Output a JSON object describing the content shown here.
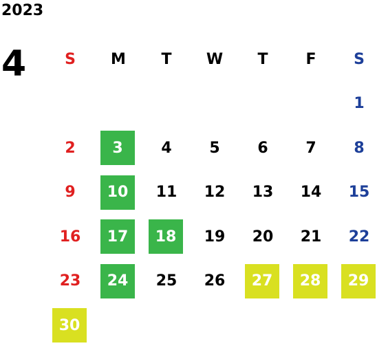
{
  "calendar": {
    "year": "2023",
    "month": "4",
    "weekdays": [
      "S",
      "M",
      "T",
      "W",
      "T",
      "F",
      "S"
    ],
    "colors": {
      "sunday": "#e02020",
      "saturday": "#1d3f99",
      "green_highlight": "#3ab54a",
      "yellow_highlight": "#d9e021"
    },
    "weeks": [
      [
        null,
        null,
        null,
        null,
        null,
        null,
        {
          "day": "1"
        }
      ],
      [
        {
          "day": "2"
        },
        {
          "day": "3",
          "highlight": "green"
        },
        {
          "day": "4"
        },
        {
          "day": "5"
        },
        {
          "day": "6"
        },
        {
          "day": "7"
        },
        {
          "day": "8"
        }
      ],
      [
        {
          "day": "9"
        },
        {
          "day": "10",
          "highlight": "green"
        },
        {
          "day": "11"
        },
        {
          "day": "12"
        },
        {
          "day": "13"
        },
        {
          "day": "14"
        },
        {
          "day": "15"
        }
      ],
      [
        {
          "day": "16"
        },
        {
          "day": "17",
          "highlight": "green"
        },
        {
          "day": "18",
          "highlight": "green"
        },
        {
          "day": "19"
        },
        {
          "day": "20"
        },
        {
          "day": "21"
        },
        {
          "day": "22"
        }
      ],
      [
        {
          "day": "23"
        },
        {
          "day": "24",
          "highlight": "green"
        },
        {
          "day": "25"
        },
        {
          "day": "26"
        },
        {
          "day": "27",
          "highlight": "yellow"
        },
        {
          "day": "28",
          "highlight": "yellow"
        },
        {
          "day": "29",
          "highlight": "yellow"
        }
      ],
      [
        {
          "day": "30",
          "highlight": "yellow"
        },
        null,
        null,
        null,
        null,
        null,
        null
      ]
    ]
  }
}
